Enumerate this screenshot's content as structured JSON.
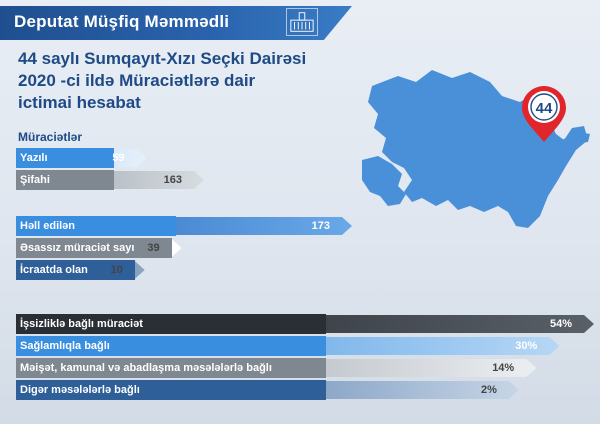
{
  "header": {
    "title": "Deputat Müşfiq Məmmədli"
  },
  "subtitle": {
    "line1": "44 saylı Sumqayıt-Xızı Seçki Dairəsi",
    "line2": "2020 -ci ildə Müraciətlərə dair",
    "line3": "ictimai hesabat"
  },
  "map": {
    "district_badge": "44"
  },
  "colors": {
    "primary": "#1e4a86",
    "accent": "#3a8ee0",
    "map": "#4a90d9",
    "marker": "#e0262b"
  },
  "chart_data": [
    {
      "type": "bar",
      "title": "Müraciətlər",
      "categories": [
        "Yazılı",
        "Şifahi"
      ],
      "values": [
        59,
        163
      ],
      "value_labels": [
        "59",
        "163"
      ]
    },
    {
      "type": "bar",
      "title": "",
      "categories": [
        "Həll edilən",
        "Əsassız müraciət sayı",
        "İcraatda olan"
      ],
      "values": [
        173,
        39,
        10
      ],
      "value_labels": [
        "173",
        "39",
        "10"
      ]
    },
    {
      "type": "bar",
      "title": "",
      "categories": [
        "İşsizliklə bağlı müraciət",
        "Sağlamlıqla bağlı",
        "Məişət, kamunal və abadlaşma məsələlərlə bağlı",
        "Digər məsələlərlə bağlı"
      ],
      "values": [
        54,
        30,
        14,
        2
      ],
      "value_labels": [
        "54%",
        "30%",
        "14%",
        "2%"
      ]
    }
  ]
}
